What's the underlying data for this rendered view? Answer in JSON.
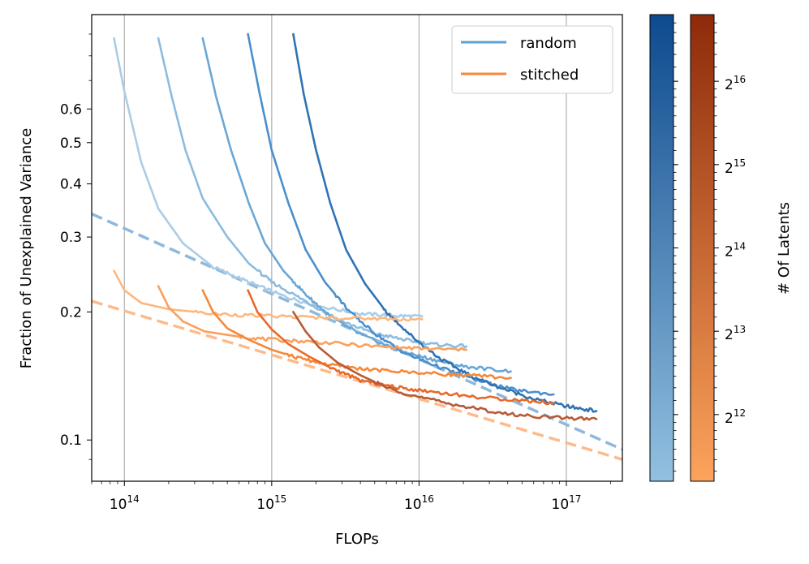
{
  "chart_data": {
    "type": "line",
    "xscale": "log",
    "yscale": "log",
    "xlabel": "FLOPs",
    "ylabel": "Fraction of Unexplained Variance",
    "xlim": [
      60000000000000.0,
      2.4e+17
    ],
    "ylim": [
      0.08,
      1.0
    ],
    "grid": "x-major",
    "legend_position": "top-right",
    "x_ticks": [
      {
        "value": 100000000000000.0,
        "base": "10",
        "exp": "14"
      },
      {
        "value": 1000000000000000.0,
        "base": "10",
        "exp": "15"
      },
      {
        "value": 1e+16,
        "base": "10",
        "exp": "16"
      },
      {
        "value": 1e+17,
        "base": "10",
        "exp": "17"
      }
    ],
    "y_ticks": [
      {
        "value": 0.1,
        "label": "0.1"
      },
      {
        "value": 0.2,
        "label": "0.2"
      },
      {
        "value": 0.3,
        "label": "0.3"
      },
      {
        "value": 0.4,
        "label": "0.4"
      },
      {
        "value": 0.5,
        "label": "0.5"
      },
      {
        "value": 0.6,
        "label": "0.6"
      }
    ],
    "legend": [
      {
        "name": "random",
        "color": "#5da1d6"
      },
      {
        "name": "stitched",
        "color": "#f6883a"
      }
    ],
    "series": [
      {
        "group": "random",
        "latents": 4096,
        "color": "#a9cde6",
        "points": [
          [
            85000000000000.0,
            0.88
          ],
          [
            100000000000000.0,
            0.66
          ],
          [
            130000000000000.0,
            0.45
          ],
          [
            170000000000000.0,
            0.35
          ],
          [
            250000000000000.0,
            0.29
          ],
          [
            400000000000000.0,
            0.255
          ],
          [
            700000000000000.0,
            0.235
          ],
          [
            1200000000000000.0,
            0.218
          ],
          [
            2000000000000000.0,
            0.207
          ],
          [
            4000000000000000.0,
            0.198
          ],
          [
            7000000000000000.0,
            0.196
          ],
          [
            1.05e+16,
            0.195
          ]
        ]
      },
      {
        "group": "random",
        "latents": 8192,
        "color": "#8bbcdf",
        "points": [
          [
            170000000000000.0,
            0.88
          ],
          [
            210000000000000.0,
            0.64
          ],
          [
            260000000000000.0,
            0.48
          ],
          [
            340000000000000.0,
            0.37
          ],
          [
            500000000000000.0,
            0.3
          ],
          [
            700000000000000.0,
            0.26
          ],
          [
            1000000000000000.0,
            0.235
          ],
          [
            1700000000000000.0,
            0.212
          ],
          [
            3000000000000000.0,
            0.19
          ],
          [
            5000000000000000.0,
            0.178
          ],
          [
            8000000000000000.0,
            0.172
          ],
          [
            1.2e+16,
            0.168
          ],
          [
            2.1e+16,
            0.166
          ]
        ]
      },
      {
        "group": "random",
        "latents": 16384,
        "color": "#6aa7d6",
        "points": [
          [
            340000000000000.0,
            0.88
          ],
          [
            420000000000000.0,
            0.64
          ],
          [
            530000000000000.0,
            0.48
          ],
          [
            700000000000000.0,
            0.36
          ],
          [
            900000000000000.0,
            0.29
          ],
          [
            1200000000000000.0,
            0.25
          ],
          [
            1700000000000000.0,
            0.22
          ],
          [
            2500000000000000.0,
            0.195
          ],
          [
            4000000000000000.0,
            0.177
          ],
          [
            7000000000000000.0,
            0.163
          ],
          [
            1.2e+16,
            0.155
          ],
          [
            2e+16,
            0.149
          ],
          [
            4.2e+16,
            0.145
          ]
        ]
      },
      {
        "group": "random",
        "latents": 32768,
        "color": "#4a8fcc",
        "points": [
          [
            690000000000000.0,
            0.9
          ],
          [
            830000000000000.0,
            0.65
          ],
          [
            1000000000000000.0,
            0.48
          ],
          [
            1300000000000000.0,
            0.36
          ],
          [
            1700000000000000.0,
            0.28
          ],
          [
            2300000000000000.0,
            0.235
          ],
          [
            3400000000000000.0,
            0.2
          ],
          [
            5000000000000000.0,
            0.178
          ],
          [
            8000000000000000.0,
            0.16
          ],
          [
            1.4e+16,
            0.148
          ],
          [
            2.5e+16,
            0.138
          ],
          [
            4.5e+16,
            0.131
          ],
          [
            8.2e+16,
            0.128
          ]
        ]
      },
      {
        "group": "random",
        "latents": 65536,
        "color": "#2f73b5",
        "points": [
          [
            1400000000000000.0,
            0.9
          ],
          [
            1650000000000000.0,
            0.65
          ],
          [
            2000000000000000.0,
            0.48
          ],
          [
            2500000000000000.0,
            0.36
          ],
          [
            3200000000000000.0,
            0.28
          ],
          [
            4300000000000000.0,
            0.233
          ],
          [
            6000000000000000.0,
            0.2
          ],
          [
            9000000000000000.0,
            0.175
          ],
          [
            1.4e+16,
            0.155
          ],
          [
            2.2e+16,
            0.142
          ],
          [
            3.5e+16,
            0.133
          ],
          [
            6e+16,
            0.125
          ],
          [
            1e+17,
            0.12
          ],
          [
            1.6e+17,
            0.117
          ]
        ]
      },
      {
        "group": "stitched",
        "latents": 4096,
        "color": "#fdb77e",
        "points": [
          [
            85000000000000.0,
            0.25
          ],
          [
            100000000000000.0,
            0.225
          ],
          [
            130000000000000.0,
            0.21
          ],
          [
            200000000000000.0,
            0.203
          ],
          [
            400000000000000.0,
            0.198
          ],
          [
            800000000000000.0,
            0.196
          ],
          [
            2000000000000000.0,
            0.194
          ],
          [
            5000000000000000.0,
            0.193
          ],
          [
            1.05e+16,
            0.192
          ]
        ]
      },
      {
        "group": "stitched",
        "latents": 8192,
        "color": "#fc9f5a",
        "points": [
          [
            170000000000000.0,
            0.23
          ],
          [
            200000000000000.0,
            0.205
          ],
          [
            250000000000000.0,
            0.19
          ],
          [
            350000000000000.0,
            0.18
          ],
          [
            600000000000000.0,
            0.175
          ],
          [
            1000000000000000.0,
            0.172
          ],
          [
            2000000000000000.0,
            0.17
          ],
          [
            5000000000000000.0,
            0.166
          ],
          [
            1e+16,
            0.164
          ],
          [
            2.1e+16,
            0.163
          ]
        ]
      },
      {
        "group": "stitched",
        "latents": 16384,
        "color": "#f6883a",
        "points": [
          [
            340000000000000.0,
            0.225
          ],
          [
            400000000000000.0,
            0.2
          ],
          [
            500000000000000.0,
            0.183
          ],
          [
            700000000000000.0,
            0.172
          ],
          [
            1000000000000000.0,
            0.163
          ],
          [
            1500000000000000.0,
            0.156
          ],
          [
            2500000000000000.0,
            0.15
          ],
          [
            5000000000000000.0,
            0.146
          ],
          [
            1e+16,
            0.144
          ],
          [
            2e+16,
            0.142
          ],
          [
            4.2e+16,
            0.14
          ]
        ]
      },
      {
        "group": "stitched",
        "latents": 32768,
        "color": "#e8692a",
        "points": [
          [
            690000000000000.0,
            0.225
          ],
          [
            800000000000000.0,
            0.2
          ],
          [
            1000000000000000.0,
            0.182
          ],
          [
            1300000000000000.0,
            0.168
          ],
          [
            1800000000000000.0,
            0.157
          ],
          [
            2500000000000000.0,
            0.148
          ],
          [
            4000000000000000.0,
            0.138
          ],
          [
            7000000000000000.0,
            0.133
          ],
          [
            1.2e+16,
            0.13
          ],
          [
            2.5e+16,
            0.126
          ],
          [
            5e+16,
            0.124
          ],
          [
            8.2e+16,
            0.122
          ]
        ]
      },
      {
        "group": "stitched",
        "latents": 65536,
        "color": "#b85a36",
        "points": [
          [
            1400000000000000.0,
            0.2
          ],
          [
            1700000000000000.0,
            0.18
          ],
          [
            2100000000000000.0,
            0.165
          ],
          [
            2800000000000000.0,
            0.152
          ],
          [
            4000000000000000.0,
            0.142
          ],
          [
            6000000000000000.0,
            0.133
          ],
          [
            1e+16,
            0.126
          ],
          [
            2e+16,
            0.12
          ],
          [
            4e+16,
            0.115
          ],
          [
            8e+16,
            0.113
          ],
          [
            1.6e+17,
            0.112
          ]
        ]
      }
    ],
    "fits": [
      {
        "group": "random",
        "color": "#8fb8db",
        "dash": "dashed",
        "points": [
          [
            60000000000000.0,
            0.34
          ],
          [
            2.4e+17,
            0.095
          ]
        ]
      },
      {
        "group": "stitched",
        "color": "#fdbb8c",
        "dash": "dashed",
        "points": [
          [
            60000000000000.0,
            0.212
          ],
          [
            2.4e+17,
            0.09
          ]
        ]
      }
    ],
    "colorbars": [
      {
        "name": "random",
        "color_low": "#92c0e0",
        "color_high": "#0d4a8e",
        "ticks": []
      },
      {
        "name": "stitched",
        "color_low": "#fda35c",
        "color_high": "#8e2a0a",
        "label": "# Of Latents",
        "ticks": [
          {
            "value": 4096,
            "base": "2",
            "exp": "12"
          },
          {
            "value": 8192,
            "base": "2",
            "exp": "13"
          },
          {
            "value": 16384,
            "base": "2",
            "exp": "14"
          },
          {
            "value": 32768,
            "base": "2",
            "exp": "15"
          },
          {
            "value": 65536,
            "base": "2",
            "exp": "16"
          }
        ]
      }
    ]
  }
}
